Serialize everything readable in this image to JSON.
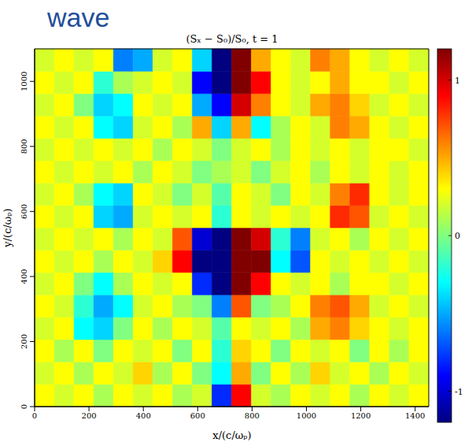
{
  "heading": "wave",
  "chart_data": {
    "type": "heatmap",
    "title": "(Sₓ − S₀)/S₀, t = 1",
    "x_label": "x/(c/ωₚ)",
    "y_label": "y/(c/ωₚ)",
    "x": [
      0,
      72.5,
      145,
      217.5,
      290,
      362.5,
      435,
      507.5,
      580,
      652.5,
      725,
      797.5,
      870,
      942.5,
      1015,
      1087.5,
      1160,
      1232.5,
      1305,
      1377.5,
      1450
    ],
    "y": [
      0,
      68.75,
      137.5,
      206.25,
      275,
      343.75,
      412.5,
      481.25,
      550,
      618.75,
      687.5,
      756.25,
      825,
      893.75,
      962.5,
      1031.25,
      1100
    ],
    "values": [
      [
        0.3,
        0.2,
        0.3,
        0.1,
        0.3,
        0.2,
        0.3,
        0.1,
        0.2,
        -0.8,
        0.9,
        0.2,
        0.1,
        0.3,
        0.2,
        0.3,
        0.1,
        0.3,
        0.2,
        0.3
      ],
      [
        0.2,
        0.3,
        0.1,
        0.3,
        0.2,
        0.4,
        0.1,
        0.3,
        0.0,
        -0.3,
        0.5,
        0.0,
        0.3,
        0.1,
        0.4,
        0.2,
        0.3,
        0.1,
        0.3,
        0.2
      ],
      [
        0.3,
        0.1,
        0.3,
        0.0,
        0.3,
        0.2,
        0.3,
        0.0,
        0.3,
        -0.2,
        0.4,
        0.3,
        0.0,
        0.3,
        0.2,
        0.3,
        0.0,
        0.3,
        0.1,
        0.3
      ],
      [
        0.2,
        0.3,
        -0.3,
        -0.4,
        0.0,
        0.3,
        0.1,
        0.3,
        0.2,
        -0.1,
        0.3,
        0.2,
        0.3,
        0.1,
        0.5,
        0.6,
        0.4,
        0.3,
        0.2,
        0.3
      ],
      [
        0.3,
        0.2,
        -0.2,
        -0.5,
        -0.3,
        0.2,
        0.3,
        0.1,
        0.0,
        -0.6,
        0.7,
        0.0,
        0.1,
        0.3,
        0.6,
        0.7,
        0.5,
        0.2,
        0.3,
        0.2
      ],
      [
        0.2,
        0.3,
        0.0,
        -0.3,
        0.1,
        0.3,
        0.2,
        0.3,
        -0.8,
        -1.2,
        1.2,
        0.9,
        0.3,
        0.2,
        0.3,
        0.1,
        0.3,
        0.3,
        0.2,
        0.3
      ],
      [
        0.3,
        0.2,
        0.3,
        0.1,
        0.3,
        0.2,
        0.4,
        0.9,
        -1.2,
        -1.2,
        1.2,
        1.2,
        -0.3,
        -0.7,
        0.3,
        0.2,
        0.3,
        0.2,
        0.3,
        0.2
      ],
      [
        0.2,
        0.3,
        0.2,
        0.3,
        0.1,
        0.3,
        0.2,
        0.7,
        -1.0,
        -1.2,
        1.2,
        1.0,
        -0.2,
        -0.6,
        0.2,
        0.3,
        0.1,
        0.3,
        0.2,
        0.3
      ],
      [
        0.3,
        0.2,
        0.3,
        -0.4,
        -0.5,
        0.2,
        0.3,
        0.2,
        0.3,
        -0.2,
        0.3,
        0.2,
        0.3,
        0.2,
        0.3,
        0.8,
        0.7,
        0.2,
        0.3,
        0.2
      ],
      [
        0.2,
        0.3,
        0.1,
        -0.3,
        -0.4,
        0.3,
        0.2,
        0.0,
        0.2,
        -0.1,
        0.3,
        0.2,
        0.0,
        0.3,
        0.2,
        0.6,
        0.8,
        0.3,
        0.2,
        0.3
      ],
      [
        0.3,
        0.2,
        0.3,
        0.2,
        0.3,
        0.1,
        0.3,
        0.2,
        0.0,
        0.1,
        0.2,
        0.0,
        0.2,
        0.3,
        0.1,
        0.3,
        0.2,
        0.3,
        0.2,
        0.3
      ],
      [
        0.2,
        0.3,
        0.2,
        0.3,
        0.2,
        0.3,
        0.1,
        0.3,
        0.2,
        0.0,
        0.2,
        0.3,
        0.1,
        0.3,
        0.2,
        0.3,
        0.2,
        0.3,
        0.3,
        0.2
      ],
      [
        0.3,
        0.2,
        0.3,
        -0.3,
        -0.4,
        0.2,
        0.3,
        0.1,
        0.5,
        -0.4,
        0.5,
        -0.3,
        0.1,
        0.3,
        0.2,
        0.6,
        0.5,
        0.3,
        0.2,
        0.3
      ],
      [
        0.2,
        0.3,
        0.0,
        -0.4,
        -0.3,
        0.3,
        0.2,
        0.3,
        -0.5,
        -0.9,
        1.0,
        0.6,
        0.3,
        0.2,
        0.5,
        0.6,
        0.4,
        0.2,
        0.3,
        0.2
      ],
      [
        0.3,
        0.2,
        0.3,
        -0.2,
        0.1,
        0.2,
        0.3,
        0.2,
        -0.9,
        -1.2,
        1.2,
        0.9,
        0.3,
        0.2,
        0.3,
        0.5,
        0.3,
        0.3,
        0.2,
        0.3
      ],
      [
        0.2,
        0.3,
        0.2,
        0.3,
        -0.6,
        -0.5,
        0.2,
        0.3,
        -0.4,
        -1.2,
        1.2,
        0.5,
        0.3,
        0.2,
        0.6,
        0.5,
        0.3,
        0.2,
        0.3,
        0.2
      ]
    ],
    "xlim": [
      0,
      1450
    ],
    "ylim": [
      0,
      1100
    ],
    "xticks": [
      0,
      200,
      400,
      600,
      800,
      1000,
      1200,
      1400
    ],
    "yticks": [
      0,
      200,
      400,
      600,
      800,
      1000
    ],
    "colorbar": {
      "range": [
        -1.2,
        1.2
      ],
      "ticks": [
        -1,
        0,
        1
      ]
    }
  }
}
